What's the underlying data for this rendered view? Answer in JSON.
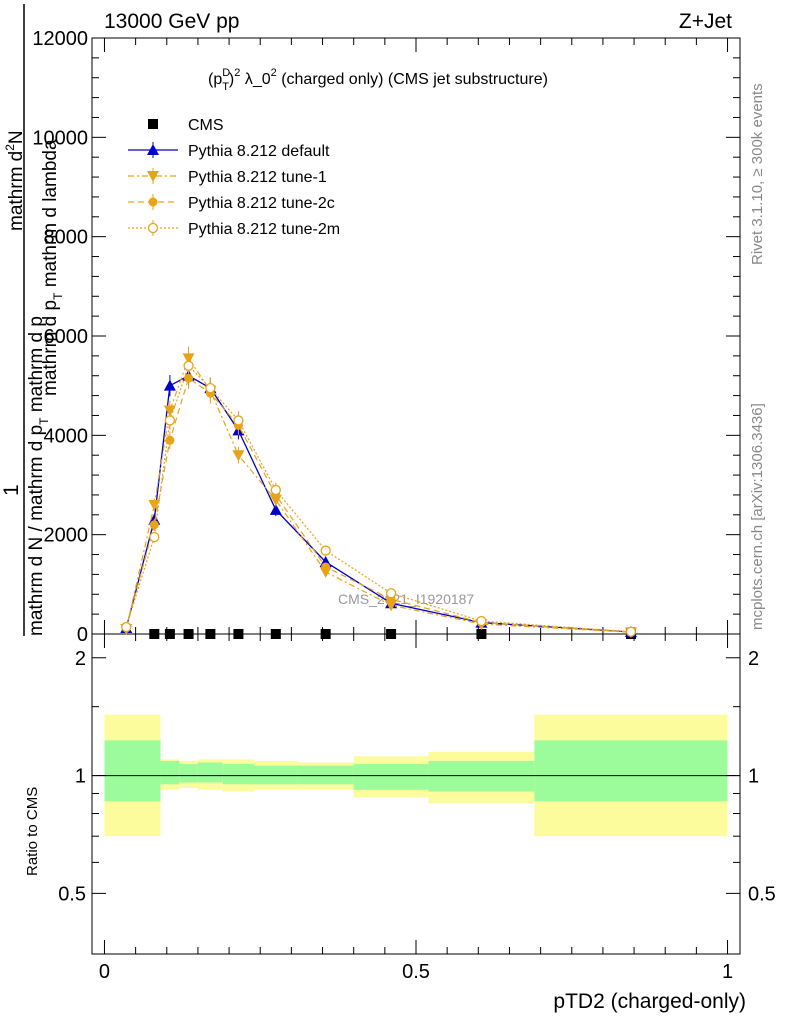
{
  "header": {
    "left": "13000 GeV pp",
    "right": "Z+Jet"
  },
  "title_main": "(p",
  "title_sup_d": "D",
  "title_sub_t": "T",
  "title_mid": ")",
  "title_sup2": "2",
  "title_rest": " λ_0",
  "title_sup2b": "2",
  "title_tail": " (charged only) (CMS jet substructure)",
  "side_labels": {
    "rivet": "Rivet 3.1.10, ≥ 300k events",
    "mcplots": "mcplots.cern.ch [arXiv:1306.3436]"
  },
  "watermark": "CMS_2021_I1920187",
  "ylabel": {
    "numerator": "mathrm d²N",
    "numerator_line2": "mathrm d p mathrm d lambda",
    "one": "1",
    "denominator": "mathrm d N / mathrm d p mathrm d",
    "sub_t": "T",
    "full_numerator": "mathrm d",
    "full_numerator_sup": "2",
    "full_numerator_n": "N",
    "line_b": "mathrm d p",
    "line_b_sub": "T",
    "line_b_rest": " mathrm d lambda",
    "den_a": "mathrm d N / mathrm d p",
    "den_a_sub": "T",
    "den_a_rest": " mathrm d p"
  },
  "ratio_ylabel": "Ratio to CMS",
  "xlabel": "pTD2 (charged-only)",
  "colors": {
    "cms": "#000000",
    "default": "#0000cc",
    "tune": "#e8a317",
    "band_inner": "#9cfc9c",
    "band_outer": "#fcfc9c"
  },
  "chart_data": [
    {
      "type": "line",
      "panel": "main",
      "xlim": [
        -0.02,
        1.02
      ],
      "ylim": [
        0,
        12000
      ],
      "yticks": [
        0,
        2000,
        4000,
        6000,
        8000,
        10000,
        12000
      ],
      "yticklabels": [
        "0",
        "2000",
        "4000",
        "6000",
        "8000",
        "10000",
        "12000"
      ],
      "legend": [
        "CMS",
        "Pythia 8.212 default",
        "Pythia 8.212 tune-1",
        "Pythia 8.212 tune-2c",
        "Pythia 8.212 tune-2m"
      ],
      "legend_position": "top-left",
      "series": [
        {
          "name": "CMS",
          "marker": "square",
          "x": [
            0.08,
            0.105,
            0.135,
            0.17,
            0.215,
            0.275,
            0.355,
            0.46,
            0.605,
            0.845
          ],
          "y": [
            0,
            0,
            0,
            0,
            0,
            0,
            0,
            0,
            0,
            0
          ]
        },
        {
          "name": "Pythia 8.212 default",
          "marker": "triangle-up",
          "x": [
            0.035,
            0.08,
            0.105,
            0.135,
            0.17,
            0.215,
            0.275,
            0.355,
            0.46,
            0.605,
            0.845
          ],
          "y": [
            120,
            2300,
            5000,
            5200,
            4950,
            4100,
            2500,
            1450,
            620,
            230,
            40
          ]
        },
        {
          "name": "Pythia 8.212 tune-1",
          "marker": "triangle-down",
          "x": [
            0.035,
            0.08,
            0.105,
            0.135,
            0.17,
            0.215,
            0.275,
            0.355,
            0.46,
            0.605,
            0.845
          ],
          "y": [
            100,
            2600,
            4500,
            5550,
            4900,
            3600,
            2700,
            1250,
            580,
            200,
            35
          ]
        },
        {
          "name": "Pythia 8.212 tune-2c",
          "marker": "circle",
          "x": [
            0.035,
            0.08,
            0.105,
            0.135,
            0.17,
            0.215,
            0.275,
            0.355,
            0.46,
            0.605,
            0.845
          ],
          "y": [
            130,
            2200,
            3900,
            5150,
            4850,
            4200,
            2800,
            1350,
            700,
            230,
            40
          ]
        },
        {
          "name": "Pythia 8.212 tune-2m",
          "marker": "open-circle",
          "x": [
            0.035,
            0.08,
            0.105,
            0.135,
            0.17,
            0.215,
            0.275,
            0.355,
            0.46,
            0.605,
            0.845
          ],
          "y": [
            140,
            1950,
            4300,
            5400,
            4950,
            4300,
            2900,
            1680,
            820,
            260,
            45
          ]
        }
      ]
    },
    {
      "type": "area",
      "panel": "ratio",
      "xlim": [
        -0.02,
        1.02
      ],
      "ylim": [
        0.35,
        2.3
      ],
      "yticks": [
        0.5,
        1,
        2
      ],
      "yticklabels": [
        "0.5",
        "1",
        "2"
      ],
      "xticks": [
        0,
        0.5,
        1
      ],
      "xticklabels": [
        "0",
        "0.5",
        "1"
      ],
      "reference_line": 1,
      "bins": [
        {
          "lo": 0.0,
          "hi": 0.09,
          "inner": [
            0.86,
            1.23
          ],
          "outer": [
            0.7,
            1.43
          ]
        },
        {
          "lo": 0.09,
          "hi": 0.12,
          "inner": [
            0.95,
            1.09
          ],
          "outer": [
            0.92,
            1.1
          ]
        },
        {
          "lo": 0.12,
          "hi": 0.15,
          "inner": [
            0.96,
            1.07
          ],
          "outer": [
            0.93,
            1.09
          ]
        },
        {
          "lo": 0.15,
          "hi": 0.19,
          "inner": [
            0.96,
            1.08
          ],
          "outer": [
            0.92,
            1.1
          ]
        },
        {
          "lo": 0.19,
          "hi": 0.24,
          "inner": [
            0.95,
            1.07
          ],
          "outer": [
            0.91,
            1.1
          ]
        },
        {
          "lo": 0.24,
          "hi": 0.31,
          "inner": [
            0.95,
            1.06
          ],
          "outer": [
            0.92,
            1.09
          ]
        },
        {
          "lo": 0.31,
          "hi": 0.4,
          "inner": [
            0.95,
            1.06
          ],
          "outer": [
            0.92,
            1.08
          ]
        },
        {
          "lo": 0.4,
          "hi": 0.52,
          "inner": [
            0.92,
            1.07
          ],
          "outer": [
            0.88,
            1.12
          ]
        },
        {
          "lo": 0.52,
          "hi": 0.69,
          "inner": [
            0.91,
            1.09
          ],
          "outer": [
            0.85,
            1.15
          ]
        },
        {
          "lo": 0.69,
          "hi": 1.0,
          "inner": [
            0.86,
            1.23
          ],
          "outer": [
            0.7,
            1.43
          ]
        }
      ]
    }
  ]
}
